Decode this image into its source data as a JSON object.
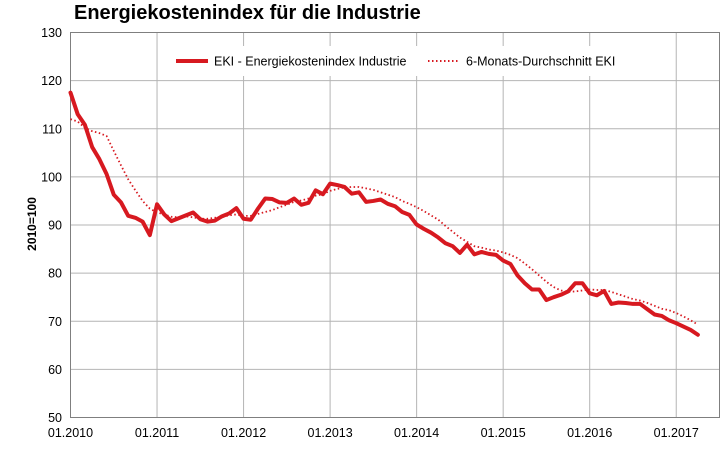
{
  "chart_data": {
    "type": "line",
    "title": "Energiekostenindex für die Industrie",
    "ylabel": "2010=100",
    "xlabel": "",
    "ylim": [
      50,
      130
    ],
    "yticks": [
      50,
      60,
      70,
      80,
      90,
      100,
      110,
      120,
      130
    ],
    "xlim": [
      0,
      90
    ],
    "xticks": [
      {
        "x": 0,
        "label": "01.2010"
      },
      {
        "x": 12,
        "label": "01.2011"
      },
      {
        "x": 24,
        "label": "01.2012"
      },
      {
        "x": 36,
        "label": "01.2013"
      },
      {
        "x": 48,
        "label": "01.2014"
      },
      {
        "x": 60,
        "label": "01.2015"
      },
      {
        "x": 72,
        "label": "01.2016"
      },
      {
        "x": 84,
        "label": "01.2017"
      }
    ],
    "grid": true,
    "legend_position": "top-center",
    "colors": {
      "series": "#d71920",
      "grid": "#b4b4b4",
      "frame": "#7f7f7f"
    },
    "series": [
      {
        "name": "EKI - Energiekostenindex Industrie",
        "style": "solid",
        "values": [
          117.5,
          113.0,
          110.8,
          106.2,
          103.7,
          100.6,
          96.3,
          94.7,
          91.9,
          91.5,
          90.7,
          87.9,
          94.3,
          92.2,
          90.8,
          91.4,
          92.0,
          92.6,
          91.2,
          90.7,
          90.9,
          91.8,
          92.4,
          93.5,
          91.3,
          91.1,
          93.4,
          95.5,
          95.4,
          94.7,
          94.6,
          95.5,
          94.2,
          94.6,
          97.2,
          96.4,
          98.6,
          98.3,
          97.9,
          96.5,
          96.8,
          94.8,
          95.0,
          95.3,
          94.4,
          93.9,
          92.7,
          92.1,
          90.1,
          89.2,
          88.4,
          87.4,
          86.2,
          85.6,
          84.2,
          85.9,
          83.9,
          84.4,
          84.0,
          83.8,
          82.6,
          81.9,
          79.5,
          77.9,
          76.6,
          76.6,
          74.4,
          75.0,
          75.5,
          76.2,
          77.9,
          77.9,
          75.8,
          75.4,
          76.3,
          73.6,
          73.9,
          73.8,
          73.6,
          73.6,
          72.5,
          71.4,
          71.1,
          70.2,
          69.6,
          68.9,
          68.2,
          67.2
        ]
      },
      {
        "name": "6-Monats-Durchschnitt EKI",
        "style": "dotted",
        "values": [
          112.0,
          111.5,
          110.2,
          109.5,
          109.1,
          108.5,
          105.4,
          102.4,
          99.5,
          97.2,
          95.0,
          93.4,
          92.6,
          92.2,
          91.7,
          91.6,
          91.8,
          91.6,
          91.3,
          91.3,
          91.5,
          91.7,
          92.0,
          92.2,
          91.9,
          91.9,
          92.3,
          92.7,
          93.1,
          93.7,
          94.2,
          94.8,
          95.1,
          95.5,
          96.1,
          96.4,
          97.1,
          97.5,
          97.8,
          97.9,
          97.9,
          97.6,
          97.3,
          96.8,
          96.3,
          95.8,
          95.0,
          94.4,
          93.7,
          92.9,
          92.0,
          91.1,
          89.8,
          88.6,
          87.4,
          86.5,
          85.6,
          85.3,
          84.9,
          84.7,
          84.3,
          83.8,
          83.1,
          82.0,
          80.8,
          79.5,
          78.2,
          77.1,
          76.4,
          76.1,
          76.2,
          76.4,
          76.6,
          76.5,
          76.5,
          76.1,
          75.6,
          75.1,
          74.6,
          74.3,
          73.8,
          73.2,
          72.6,
          72.3,
          71.7,
          71.0,
          70.2,
          69.3
        ]
      }
    ]
  }
}
